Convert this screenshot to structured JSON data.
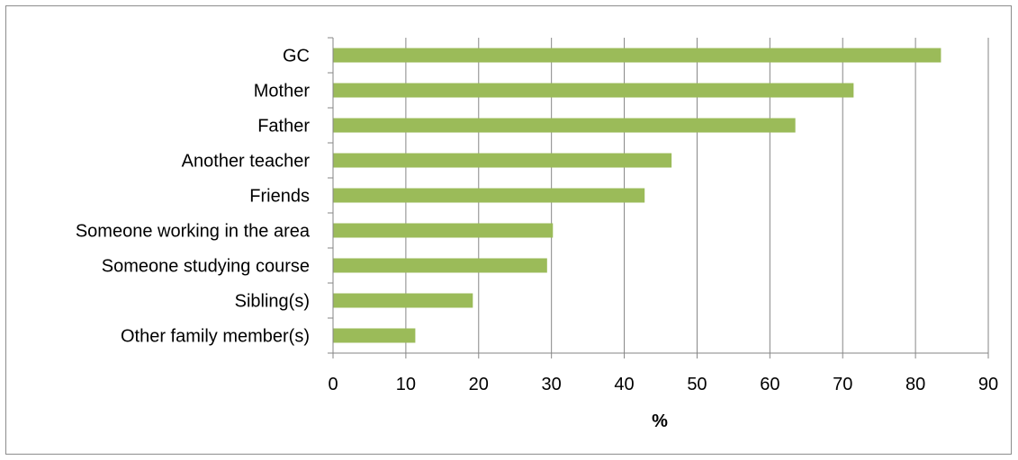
{
  "chart_data": {
    "type": "bar",
    "orientation": "horizontal",
    "categories": [
      "GC",
      "Mother",
      "Father",
      "Another teacher",
      "Friends",
      "Someone working in the area",
      "Someone studying course",
      "Sibling(s)",
      "Other family member(s)"
    ],
    "values": [
      83.5,
      71.5,
      63.5,
      46.5,
      42.8,
      30.2,
      29.4,
      19.2,
      11.3
    ],
    "title": "",
    "xlabel": "%",
    "ylabel": "",
    "xlim": [
      0,
      90
    ],
    "xticks": [
      0,
      10,
      20,
      30,
      40,
      50,
      60,
      70,
      80,
      90
    ],
    "grid": "vertical",
    "legend": "none",
    "bar_color": "#9bbb59",
    "grid_color": "#868686"
  }
}
